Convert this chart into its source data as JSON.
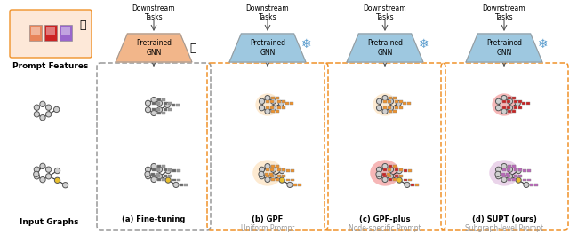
{
  "bg_color": "#ffffff",
  "sections": [
    "(a) Fine-tuning",
    "(b) GPF",
    "(c) GPF-plus",
    "(d) SUPT (ours)"
  ],
  "subtitles": [
    "",
    "Uniform Prompt",
    "Node-specific Prompt",
    "Subgraph-level Prompt"
  ],
  "gnn_label": "Pretrained\nGNN",
  "downstream_label": "Downstream\nTasks",
  "prompt_features_label": "Prompt Features",
  "input_graphs_label": "Input Graphs",
  "gnn_colors": [
    "#f2b68a",
    "#9ec8e0",
    "#9ec8e0",
    "#9ec8e0"
  ],
  "panel_colors": [
    "#999999",
    "#f0922a",
    "#f0922a",
    "#f0922a"
  ],
  "gray_node": "#d0d0d0",
  "yellow_node": "#e8c030",
  "orange_node": "#f0a060",
  "dark_node": "#888888",
  "gray_prompt": "#666666",
  "orange_prompt": "#f0922a",
  "red_prompt": "#cc2222",
  "purple_prompt": "#bb66bb",
  "bg_orange": "#fde8cc",
  "bg_pink": "#f5b0b0",
  "bg_purple": "#e8c8e8",
  "prompt_bar_orange": "#e8845a",
  "prompt_bar_red": "#cc2222",
  "prompt_bar_purple": "#9966cc",
  "fire_orange": "#f06020"
}
